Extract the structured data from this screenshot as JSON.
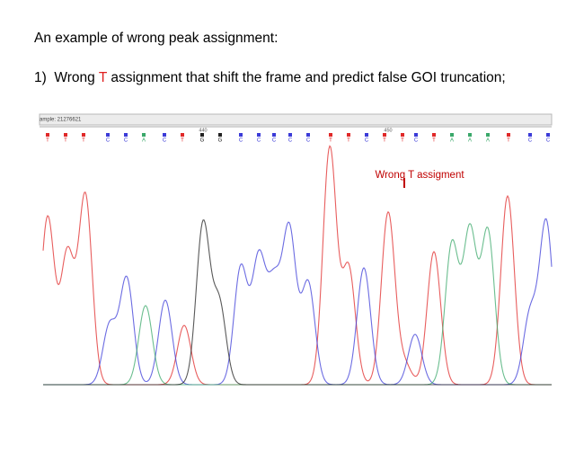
{
  "document": {
    "heading": "An example of wrong peak assignment:",
    "item": {
      "number": "1)",
      "prefix": "Wrong ",
      "highlight": "T",
      "rest": " assignment that shift the frame and predict false GOI truncation;"
    },
    "chromatogram": {
      "sample": "ample: 21276621",
      "positions": [
        "440",
        "450"
      ],
      "bases": [
        "T",
        "T",
        "T",
        "C",
        "C",
        "A",
        "C",
        "T",
        "G",
        "G",
        "C",
        "C",
        "C",
        "C",
        "C",
        "T",
        "T",
        "C",
        "T",
        "T",
        "C",
        "T",
        "A",
        "A",
        "A",
        "T",
        "C",
        "C"
      ],
      "base_colors": {
        "A": "#3aa86a",
        "C": "#3b3bd8",
        "G": "#222222",
        "T": "#e02828"
      },
      "annotation": "Wrong T assigment"
    }
  }
}
